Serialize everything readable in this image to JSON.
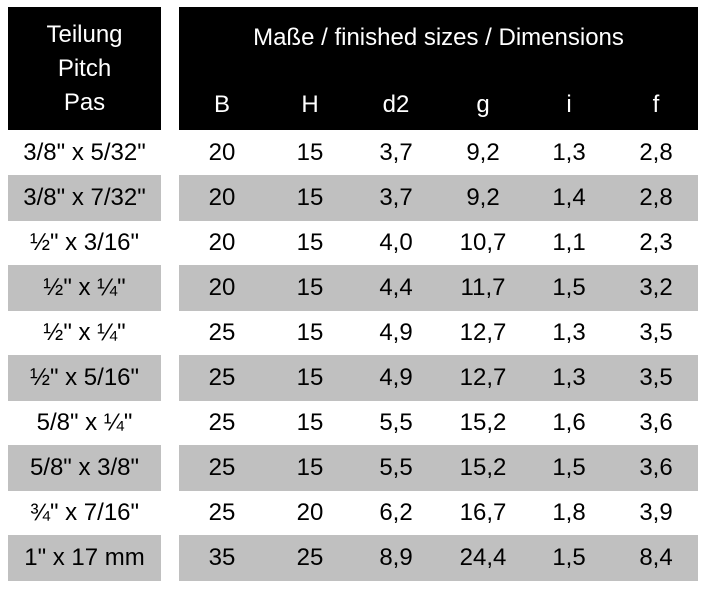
{
  "header": {
    "pitch_lines": [
      "Teilung",
      "Pitch",
      "Pas"
    ],
    "dimensions_title": "Maße / finished sizes / Dimensions",
    "columns": [
      "B",
      "H",
      "d2",
      "g",
      "i",
      "f"
    ]
  },
  "rows": [
    {
      "pitch": "3/8\" x 5/32\"",
      "values": [
        "20",
        "15",
        "3,7",
        "9,2",
        "1,3",
        "2,8"
      ]
    },
    {
      "pitch": "3/8\" x 7/32\"",
      "values": [
        "20",
        "15",
        "3,7",
        "9,2",
        "1,4",
        "2,8"
      ]
    },
    {
      "pitch": "½\" x 3/16\"",
      "values": [
        "20",
        "15",
        "4,0",
        "10,7",
        "1,1",
        "2,3"
      ]
    },
    {
      "pitch": "½\" x ¼\"",
      "values": [
        "20",
        "15",
        "4,4",
        "11,7",
        "1,5",
        "3,2"
      ]
    },
    {
      "pitch": "½\" x ¼\"",
      "values": [
        "25",
        "15",
        "4,9",
        "12,7",
        "1,3",
        "3,5"
      ]
    },
    {
      "pitch": "½\" x 5/16\"",
      "values": [
        "25",
        "15",
        "4,9",
        "12,7",
        "1,3",
        "3,5"
      ]
    },
    {
      "pitch": "5/8\" x ¼\"",
      "values": [
        "25",
        "15",
        "5,5",
        "15,2",
        "1,6",
        "3,6"
      ]
    },
    {
      "pitch": "5/8\" x 3/8\"",
      "values": [
        "25",
        "15",
        "5,5",
        "15,2",
        "1,5",
        "3,6"
      ]
    },
    {
      "pitch": "¾\" x 7/16\"",
      "values": [
        "25",
        "20",
        "6,2",
        "16,7",
        "1,8",
        "3,9"
      ]
    },
    {
      "pitch": "1\" x 17 mm",
      "values": [
        "35",
        "25",
        "8,9",
        "24,4",
        "1,5",
        "8,4"
      ]
    }
  ]
}
